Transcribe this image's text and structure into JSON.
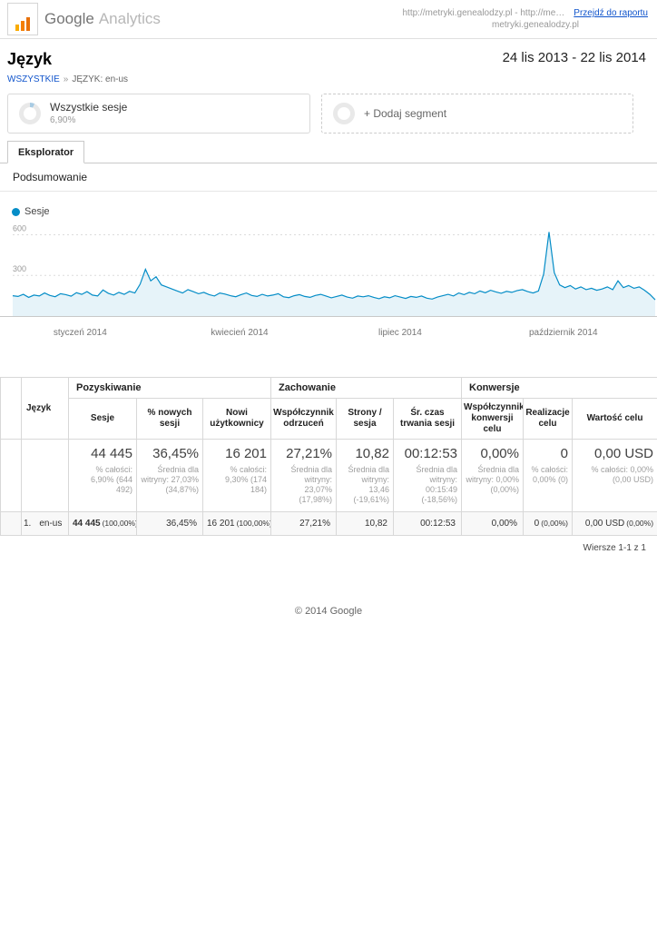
{
  "colors": {
    "accent_blue": "#058dc7",
    "link_blue": "#1155cc"
  },
  "header": {
    "logo_google": "Google",
    "logo_analytics": "Analytics",
    "url_text": "http://metryki.genealodzy.pl - http://me…",
    "url_text2": "metryki.genealodzy.pl",
    "go_to_report": "Przejdź do raportu"
  },
  "report": {
    "title": "Język",
    "date_range": "24 lis 2013 - 22 lis 2014",
    "breadcrumb": {
      "all": "WSZYSTKIE",
      "sep": "»",
      "current": "JĘZYK: en-us"
    }
  },
  "segments": {
    "all_sessions_label": "Wszystkie sesje",
    "all_sessions_percent": "6,90%",
    "add_segment_label": "+ Dodaj segment"
  },
  "tabs": {
    "explorer": "Eksplorator",
    "summary": "Podsumowanie"
  },
  "chart_data": {
    "type": "area",
    "series_name": "Sesje",
    "title": "",
    "xlabel": "",
    "ylabel": "",
    "x_range": "24 lis 2013 - 22 lis 2014",
    "ylim": [
      0,
      650
    ],
    "yticks": [
      300,
      600
    ],
    "xticks": [
      {
        "label": "styczeń 2014",
        "f": 0.105
      },
      {
        "label": "kwiecień 2014",
        "f": 0.353
      },
      {
        "label": "lipiec 2014",
        "f": 0.603
      },
      {
        "label": "październik 2014",
        "f": 0.857
      }
    ],
    "line_color": "#058dc7",
    "fill_color": "rgba(5,141,199,0.10)",
    "grid": true,
    "legend_position": "top-left",
    "values": [
      150,
      145,
      160,
      138,
      155,
      148,
      170,
      152,
      143,
      165,
      158,
      147,
      172,
      160,
      180,
      155,
      148,
      192,
      168,
      155,
      175,
      160,
      182,
      170,
      235,
      345,
      260,
      290,
      230,
      215,
      200,
      185,
      170,
      195,
      180,
      165,
      175,
      158,
      148,
      170,
      162,
      150,
      143,
      158,
      170,
      152,
      145,
      160,
      148,
      155,
      165,
      142,
      136,
      150,
      158,
      145,
      138,
      152,
      160,
      148,
      135,
      145,
      155,
      140,
      132,
      148,
      142,
      150,
      138,
      128,
      142,
      135,
      150,
      140,
      130,
      145,
      138,
      148,
      132,
      125,
      140,
      150,
      160,
      148,
      170,
      158,
      175,
      165,
      185,
      172,
      190,
      178,
      168,
      182,
      175,
      188,
      195,
      180,
      170,
      185,
      310,
      620,
      320,
      230,
      210,
      225,
      200,
      215,
      195,
      205,
      190,
      200,
      215,
      195,
      260,
      210,
      225,
      205,
      215,
      190,
      160,
      120
    ]
  },
  "table": {
    "dimension_header": "Język",
    "groups": [
      {
        "label": "Pozyskiwanie"
      },
      {
        "label": "Zachowanie"
      },
      {
        "label": "Konwersje"
      }
    ],
    "columns": [
      "Sesje",
      "% nowych sesji",
      "Nowi użytkownicy",
      "Współczynnik odrzuceń",
      "Strony / sesja",
      "Śr. czas trwania sesji",
      "Współczynnik konwersji celu",
      "Realizacje celu",
      "Wartość celu"
    ],
    "summary": [
      {
        "value": "44 445",
        "sub": "% całości: 6,90% (644 492)"
      },
      {
        "value": "36,45%",
        "sub": "Średnia dla witryny: 27,03% (34,87%)"
      },
      {
        "value": "16 201",
        "sub": "% całości: 9,30% (174 184)"
      },
      {
        "value": "27,21%",
        "sub": "Średnia dla witryny: 23,07% (17,98%)"
      },
      {
        "value": "10,82",
        "sub": "Średnia dla witryny: 13,46 (-19,61%)"
      },
      {
        "value": "00:12:53",
        "sub": "Średnia dla witryny: 00:15:49 (-18,56%)"
      },
      {
        "value": "0,00%",
        "sub": "Średnia dla witryny: 0,00% (0,00%)"
      },
      {
        "value": "0",
        "sub": "% całości: 0,00% (0)"
      },
      {
        "value": "0,00 USD",
        "sub": "% całości: 0,00% (0,00 USD)"
      }
    ],
    "rows": [
      {
        "rank": "1.",
        "dimension": "en-us",
        "cells": [
          {
            "v": "44 445",
            "pct": "(100,00%)"
          },
          {
            "v": "36,45%"
          },
          {
            "v": "16 201",
            "pct": "(100,00%)"
          },
          {
            "v": "27,21%"
          },
          {
            "v": "10,82"
          },
          {
            "v": "00:12:53"
          },
          {
            "v": "0,00%"
          },
          {
            "v": "0",
            "pct": "(0,00%)"
          },
          {
            "v": "0,00 USD",
            "pct": "(0,00%)"
          }
        ]
      }
    ],
    "pagination": "Wiersze 1-1 z 1"
  },
  "footer": {
    "copyright": "© 2014 Google"
  }
}
